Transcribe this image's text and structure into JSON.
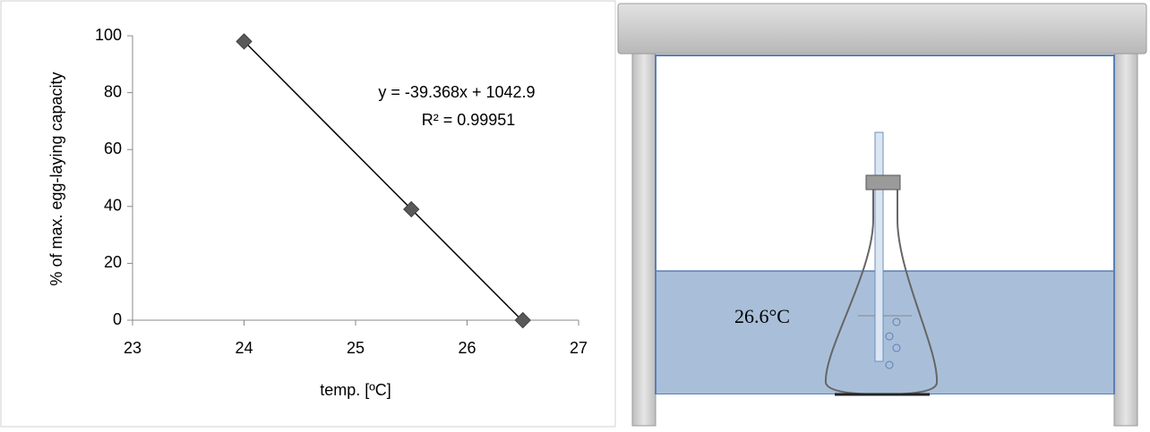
{
  "chart_data": {
    "type": "scatter",
    "xlabel": "temp. [ºC]",
    "ylabel": "% of max. egg-laying capacity",
    "series": [
      {
        "color": "#595959",
        "x": [
          24,
          25.5,
          26.5
        ],
        "values": [
          98,
          39,
          0
        ]
      }
    ],
    "xlim": [
      23,
      27
    ],
    "xticks": [
      23,
      24,
      25,
      26,
      27
    ],
    "ylim": [
      0,
      100
    ],
    "yticks": [
      0,
      20,
      40,
      60,
      80,
      100
    ],
    "trendline": {
      "slope": -39.368,
      "intercept": 1042.9,
      "color": "#000000",
      "equation": "y = -39.368x + 1042.9",
      "r2": "R² = 0.99951"
    }
  },
  "diagram": {
    "label": "26.6°C"
  }
}
